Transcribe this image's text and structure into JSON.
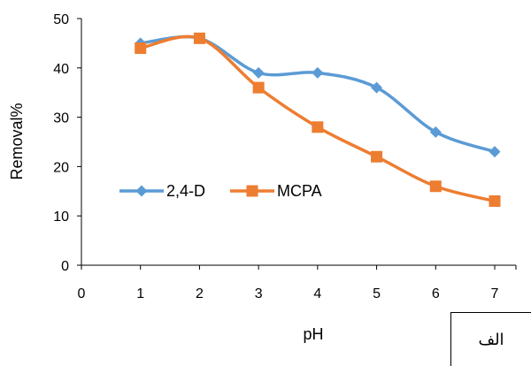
{
  "chart_data": {
    "type": "line",
    "xlabel": "pH",
    "ylabel": "Removal%",
    "xlim": [
      0,
      7
    ],
    "ylim": [
      0,
      50
    ],
    "x_ticks": [
      "0",
      "1",
      "2",
      "3",
      "4",
      "5",
      "6",
      "7"
    ],
    "y_ticks": [
      "0",
      "10",
      "20",
      "30",
      "40",
      "50"
    ],
    "grid": false,
    "legend_position": "inside-left",
    "x": [
      1,
      2,
      3,
      4,
      5,
      6,
      7
    ],
    "series": [
      {
        "name": "2,4-D",
        "values": [
          45,
          46,
          39,
          39,
          36,
          27,
          23
        ],
        "color": "#5B9BD5",
        "marker": "diamond"
      },
      {
        "name": "MCPA",
        "values": [
          44,
          46,
          36,
          28,
          22,
          16,
          13
        ],
        "color": "#ED7D31",
        "marker": "square"
      }
    ]
  },
  "panel_label": "الف"
}
